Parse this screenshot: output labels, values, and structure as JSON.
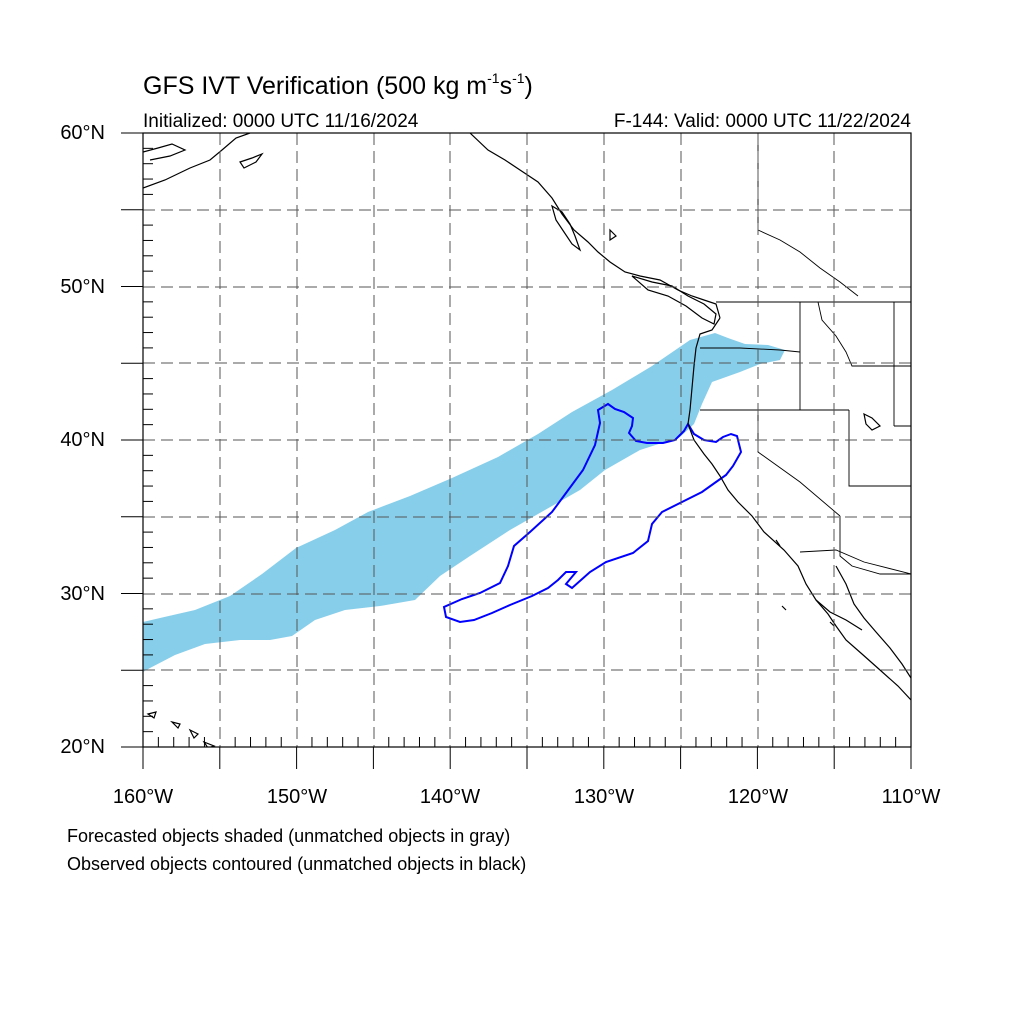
{
  "header": {
    "title_main": "GFS IVT Verification (500 kg m",
    "title_sup1": "-1",
    "title_mid": "s",
    "title_sup2": "-1",
    "title_end": ")",
    "initialized": "Initialized: 0000 UTC 11/16/2024",
    "valid": "F-144: Valid: 0000 UTC 11/22/2024"
  },
  "axes": {
    "y_labels": [
      "60°N",
      "50°N",
      "40°N",
      "30°N",
      "20°N"
    ],
    "x_labels": [
      "160°W",
      "150°W",
      "140°W",
      "130°W",
      "120°W",
      "110°W"
    ],
    "lat_range": [
      20,
      60
    ],
    "lon_range": [
      -160,
      -110
    ]
  },
  "legend": {
    "line1": "Forecasted objects shaded (unmatched objects in gray)",
    "line2": "Observed objects contoured (unmatched objects in black)"
  },
  "colors": {
    "forecast_fill": "#87ceeb",
    "observed_contour": "#0000ff",
    "coastline": "#000000",
    "grid": "#555555"
  }
}
